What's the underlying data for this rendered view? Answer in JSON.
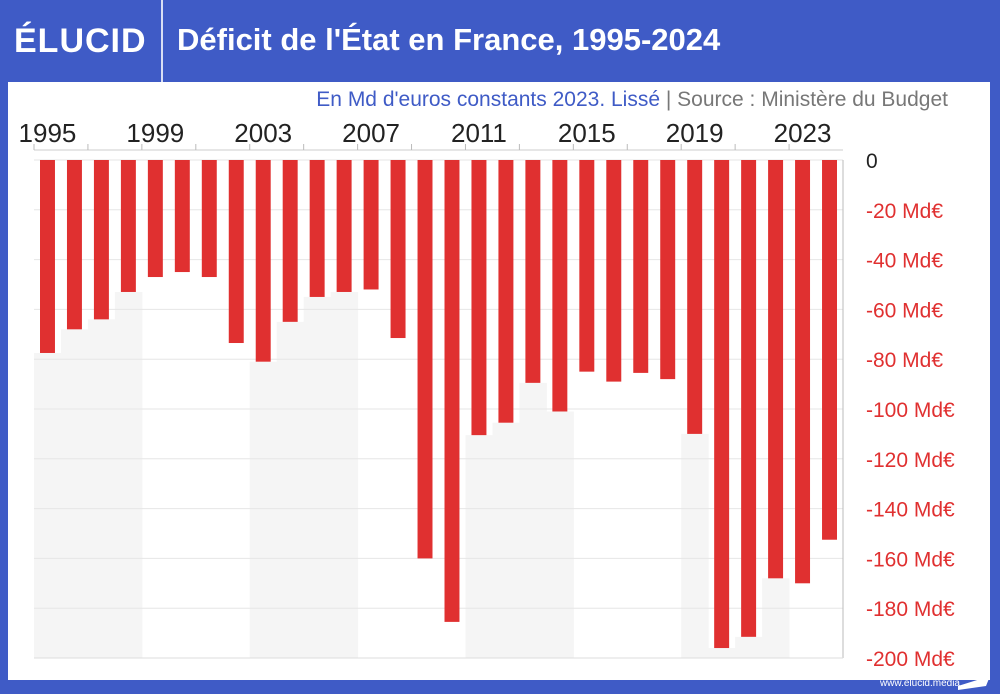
{
  "header": {
    "logo": "ÉLUCID",
    "title": "Déficit de l'État en France, 1995-2024"
  },
  "subtitle": {
    "unit": "En Md d'euros constants 2023. Lissé",
    "separator": "|",
    "source": "Source : Ministère du Budget"
  },
  "footer": {
    "url": "www.elucid.media"
  },
  "colors": {
    "bar": "#e03030",
    "header": "#3f5bc6",
    "band": "#f5f5f5",
    "ytick": "#e03030"
  },
  "chart_data": {
    "type": "bar",
    "title": "Déficit de l'État en France, 1995-2024",
    "categories": [
      1995,
      1996,
      1997,
      1998,
      1999,
      2000,
      2001,
      2002,
      2003,
      2004,
      2005,
      2006,
      2007,
      2008,
      2009,
      2010,
      2011,
      2012,
      2013,
      2014,
      2015,
      2016,
      2017,
      2018,
      2019,
      2020,
      2021,
      2022,
      2023,
      2024
    ],
    "values": [
      -77.5,
      -68,
      -64,
      -53,
      -47,
      -45,
      -47,
      -73.5,
      -81,
      -65,
      -55,
      -53,
      -52,
      -71.5,
      -160,
      -185.5,
      -110.5,
      -105.5,
      -89.5,
      -101,
      -85,
      -89,
      -85.5,
      -88,
      -110,
      -196,
      -191.5,
      -168,
      -170,
      -152.5
    ],
    "x_tick_labels": [
      "1995",
      "1999",
      "2003",
      "2007",
      "2011",
      "2015",
      "2019",
      "2023"
    ],
    "y_tick_labels": [
      "0",
      "-20 Md€",
      "-40 Md€",
      "-60 Md€",
      "-80 Md€",
      "-100 Md€",
      "-120 Md€",
      "-140 Md€",
      "-160 Md€",
      "-180 Md€",
      "-200 Md€"
    ],
    "ylim": [
      -200,
      0
    ],
    "y_axis_position": "right",
    "x_axis_position": "top",
    "grid": true
  }
}
